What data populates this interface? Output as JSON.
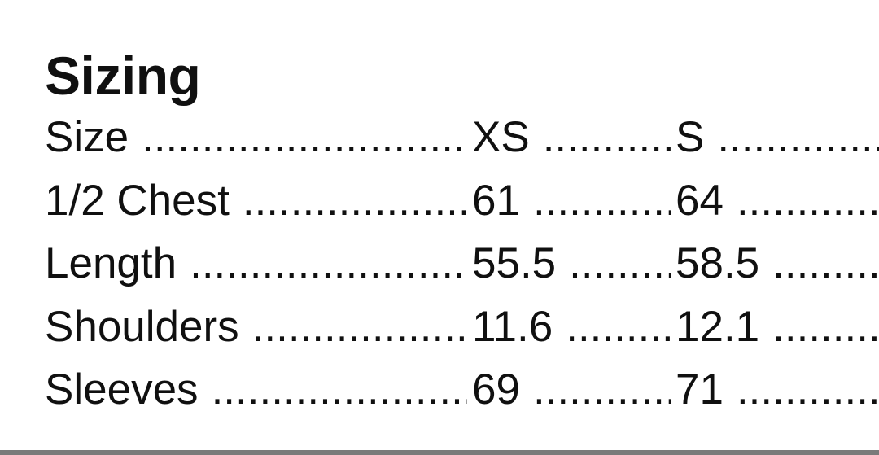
{
  "page": {
    "background_color": "#ffffff",
    "text_color": "#101010",
    "bottom_bar_color": "#7a7a7a",
    "leader_char": "."
  },
  "heading": "Sizing",
  "table": {
    "columns_visible": [
      "label",
      "XS",
      "S"
    ],
    "rows": [
      {
        "label": "Size",
        "v1": "XS",
        "v2": "S"
      },
      {
        "label": "1/2 Chest",
        "v1": "61",
        "v2": "64"
      },
      {
        "label": "Length",
        "v1": "55.5",
        "v2": "58.5"
      },
      {
        "label": "Shoulders",
        "v1": "11.6",
        "v2": "12.1"
      },
      {
        "label": "Sleeves",
        "v1": "69",
        "v2": "71"
      }
    ]
  }
}
